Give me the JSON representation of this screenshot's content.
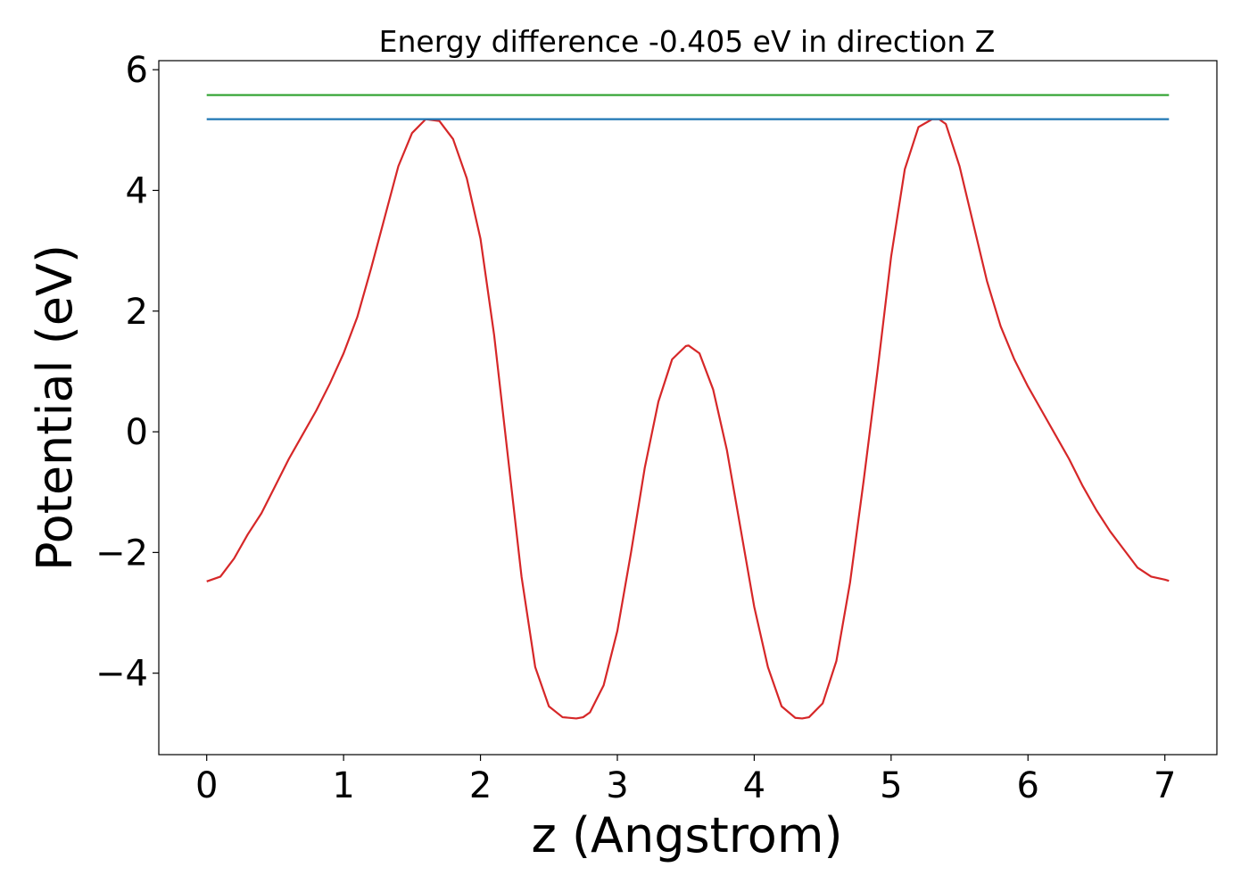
{
  "chart_data": {
    "type": "line",
    "title": "Energy difference -0.405 eV in direction Z",
    "xlabel": "z (Angstrom)",
    "ylabel": "Potential (eV)",
    "xlim": [
      -0.35,
      7.38
    ],
    "ylim": [
      -5.35,
      6.15
    ],
    "xticks": [
      0,
      1,
      2,
      3,
      4,
      5,
      6,
      7
    ],
    "yticks": [
      -4,
      -2,
      0,
      2,
      4,
      6
    ],
    "grid": false,
    "series": [
      {
        "color": "#d62728",
        "x": [
          0,
          0.1,
          0.2,
          0.3,
          0.4,
          0.5,
          0.6,
          0.7,
          0.8,
          0.9,
          1.0,
          1.1,
          1.2,
          1.3,
          1.4,
          1.5,
          1.6,
          1.7,
          1.8,
          1.9,
          2.0,
          2.1,
          2.2,
          2.3,
          2.4,
          2.5,
          2.6,
          2.7,
          2.75,
          2.8,
          2.9,
          3.0,
          3.1,
          3.2,
          3.3,
          3.4,
          3.5,
          3.52,
          3.6,
          3.7,
          3.8,
          3.9,
          4.0,
          4.1,
          4.2,
          4.3,
          4.35,
          4.4,
          4.5,
          4.6,
          4.7,
          4.8,
          4.9,
          5.0,
          5.1,
          5.2,
          5.3,
          5.35,
          5.4,
          5.5,
          5.6,
          5.7,
          5.8,
          5.9,
          6.0,
          6.1,
          6.2,
          6.3,
          6.4,
          6.5,
          6.6,
          6.7,
          6.8,
          6.9,
          7.0,
          7.03
        ],
        "y": [
          -2.48,
          -2.4,
          -2.1,
          -1.7,
          -1.35,
          -0.9,
          -0.45,
          -0.05,
          0.35,
          0.8,
          1.3,
          1.9,
          2.7,
          3.55,
          4.4,
          4.95,
          5.18,
          5.15,
          4.85,
          4.2,
          3.2,
          1.6,
          -0.4,
          -2.4,
          -3.9,
          -4.55,
          -4.73,
          -4.75,
          -4.73,
          -4.65,
          -4.2,
          -3.3,
          -2.0,
          -0.6,
          0.5,
          1.2,
          1.42,
          1.43,
          1.3,
          0.7,
          -0.3,
          -1.6,
          -2.9,
          -3.9,
          -4.55,
          -4.74,
          -4.75,
          -4.73,
          -4.5,
          -3.8,
          -2.5,
          -0.8,
          1.0,
          2.9,
          4.35,
          5.05,
          5.18,
          5.18,
          5.1,
          4.4,
          3.45,
          2.5,
          1.75,
          1.2,
          0.75,
          0.35,
          -0.05,
          -0.45,
          -0.9,
          -1.3,
          -1.65,
          -1.95,
          -2.25,
          -2.4,
          -2.45,
          -2.47
        ]
      },
      {
        "color": "#1f77b4",
        "x": [
          0,
          7.03
        ],
        "y": [
          5.18,
          5.18
        ]
      },
      {
        "color": "#2ca02c",
        "x": [
          0,
          7.03
        ],
        "y": [
          5.58,
          5.58
        ]
      }
    ]
  }
}
